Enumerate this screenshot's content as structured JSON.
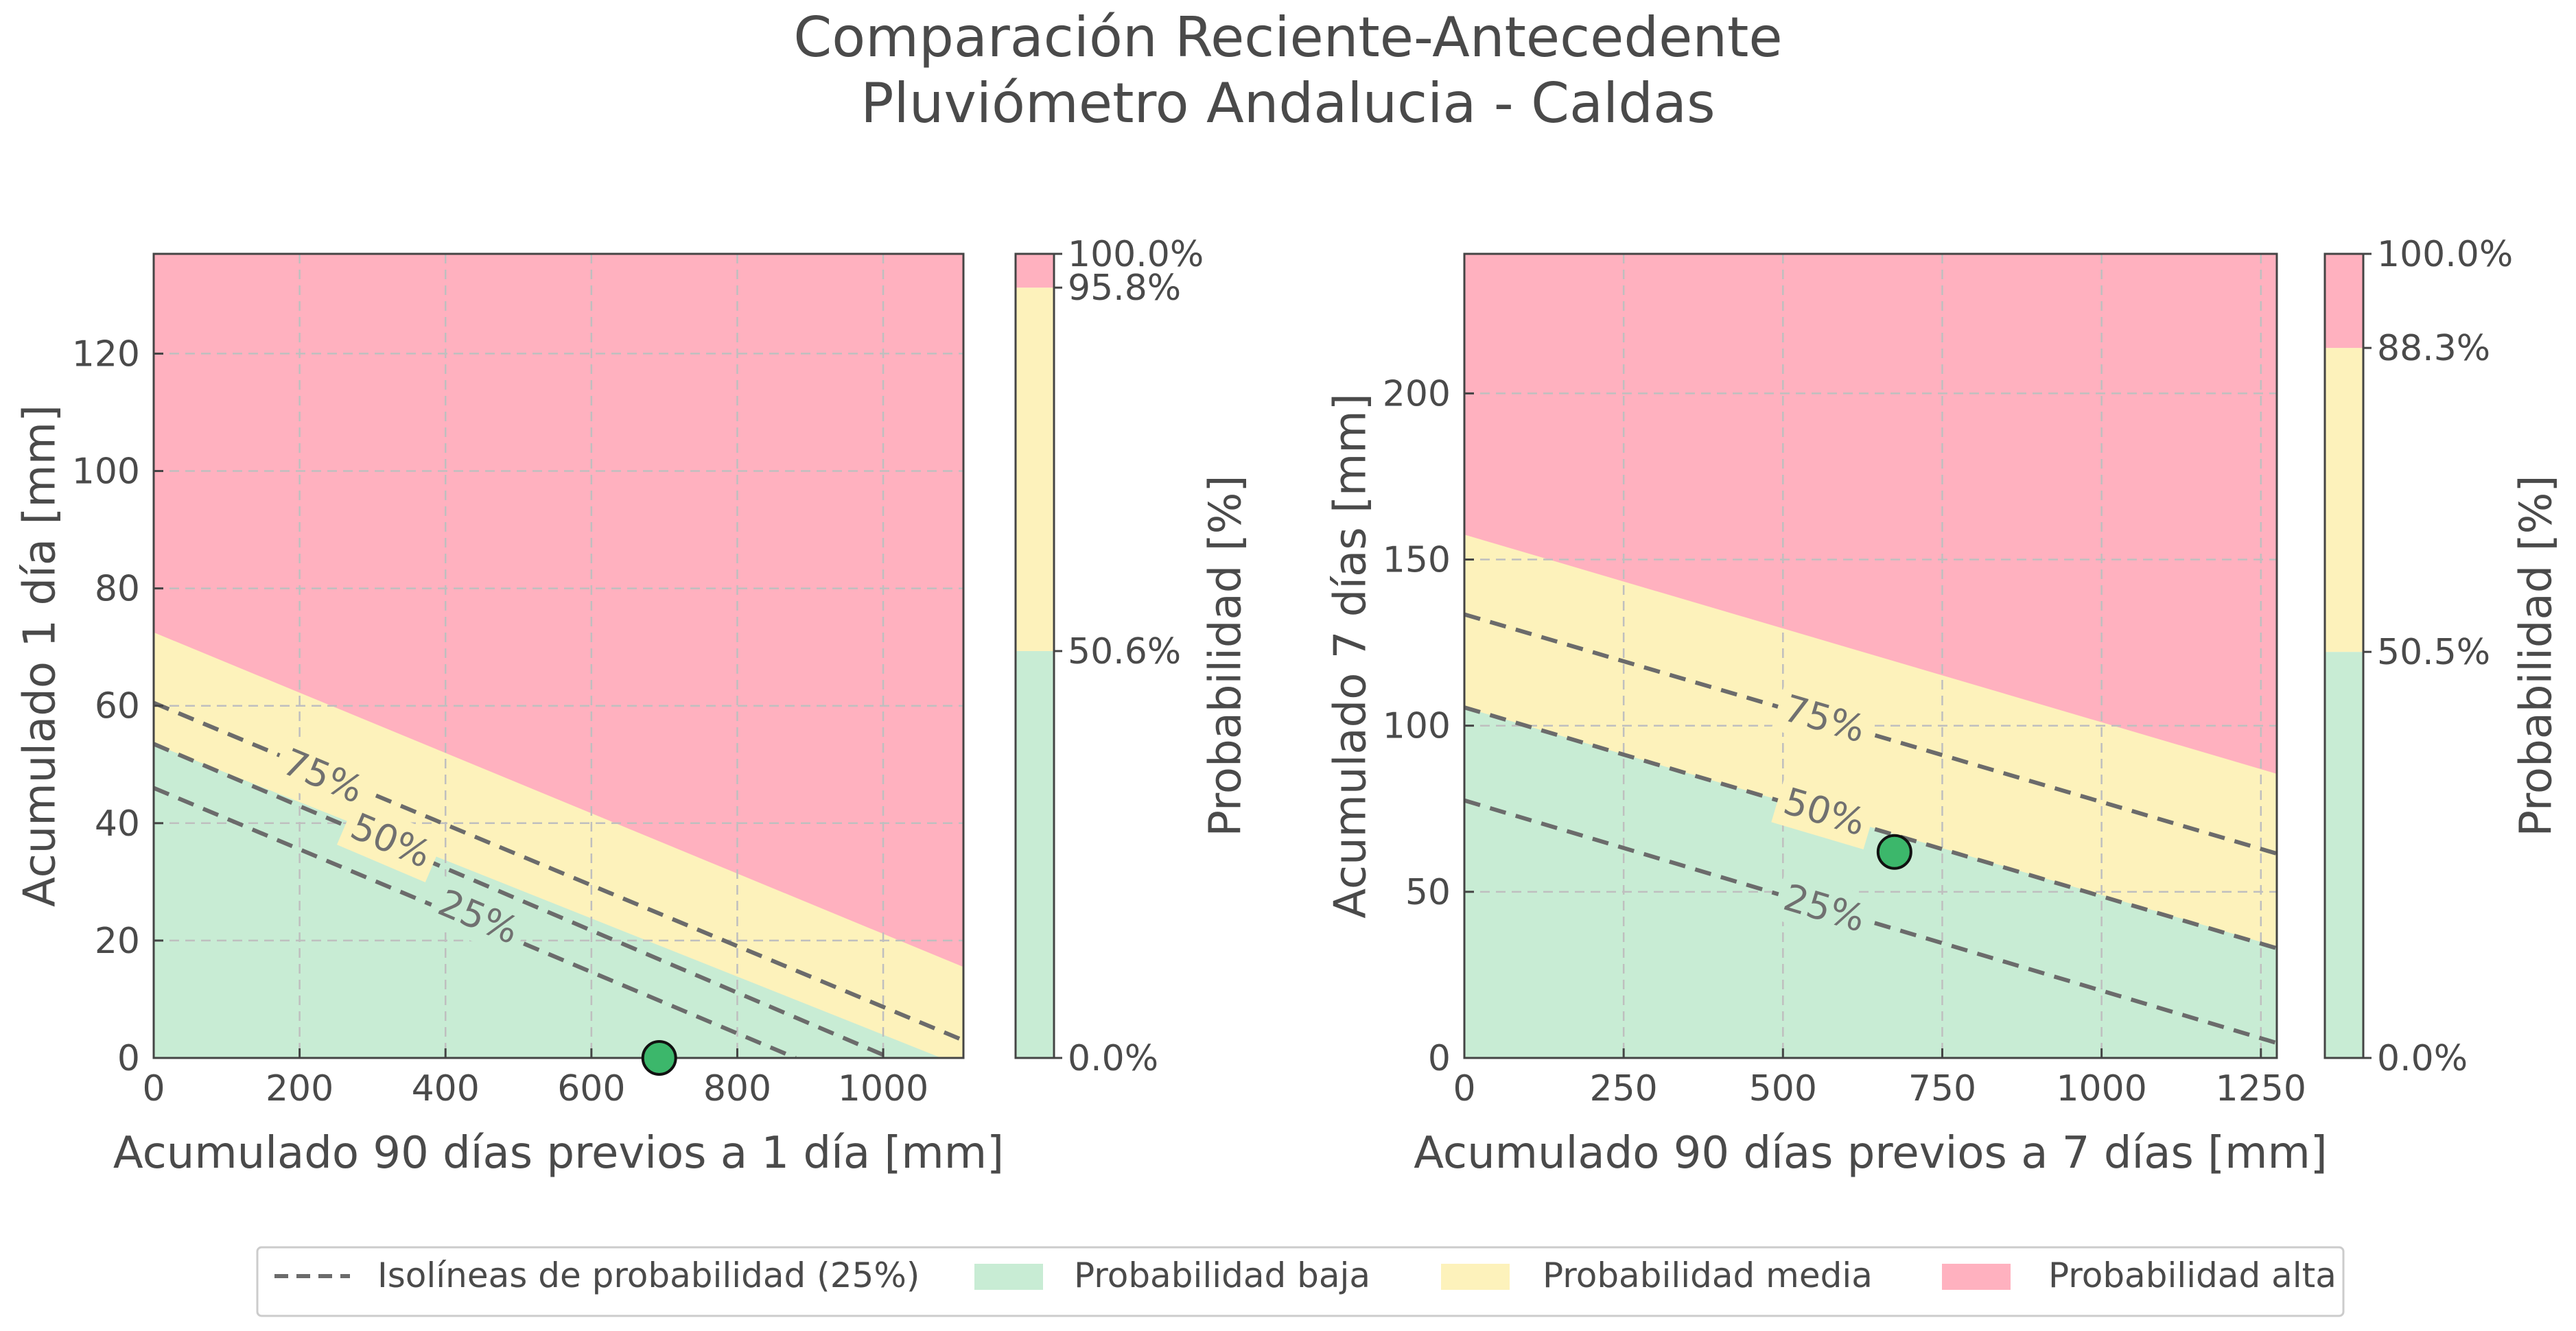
{
  "figure": {
    "title_line1": "Comparación Reciente-Antecedente",
    "title_line2": "Pluviómetro Andalucia - Caldas"
  },
  "colors": {
    "low": "#c8ecd4",
    "medium": "#fdf2bb",
    "high": "#ffb1bf",
    "isoline": "#6b6b6b",
    "point": "#3cb76b",
    "grid": "#bfbfbf",
    "text": "#4a4a4a"
  },
  "chart_data": [
    {
      "type": "contour",
      "xlabel": "Acumulado 90 días previos a 1 día [mm]",
      "ylabel": "Acumulado 1 día [mm]",
      "xlim": [
        0,
        1110
      ],
      "ylim": [
        0,
        137
      ],
      "xticks": [
        0,
        200,
        400,
        600,
        800,
        1000
      ],
      "yticks": [
        0,
        20,
        40,
        60,
        80,
        100,
        120
      ],
      "grid": true,
      "regions": {
        "low_medium_boundary": {
          "x": [
            0,
            1110
          ],
          "y": [
            53.5,
            -1.5
          ]
        },
        "medium_high_boundary": {
          "x": [
            0,
            1110
          ],
          "y": [
            72.5,
            15.5
          ]
        }
      },
      "isolines": [
        {
          "label": "25%",
          "x": [
            0,
            880
          ],
          "y": [
            46,
            0
          ],
          "label_at": [
            445,
            24
          ]
        },
        {
          "label": "50%",
          "x": [
            0,
            1010
          ],
          "y": [
            53.5,
            0
          ],
          "label_at": [
            325,
            37
          ]
        },
        {
          "label": "75%",
          "x": [
            0,
            1110
          ],
          "y": [
            60.5,
            3
          ],
          "label_at": [
            232,
            48
          ]
        }
      ],
      "current_point": {
        "x": 693,
        "y": 0
      },
      "colorbar": {
        "label": "Probabilidad [%]",
        "ticks": [
          "0.0%",
          "50.6%",
          "95.8%",
          "100.0%"
        ],
        "levels": [
          0,
          50.6,
          95.8,
          100
        ]
      }
    },
    {
      "type": "contour",
      "xlabel": "Acumulado 90 días previos a 7 días [mm]",
      "ylabel": "Acumulado 7 días [mm]",
      "xlim": [
        0,
        1275
      ],
      "ylim": [
        0,
        242
      ],
      "xticks": [
        0,
        250,
        500,
        750,
        1000,
        1250
      ],
      "yticks": [
        0,
        50,
        100,
        150,
        200
      ],
      "grid": true,
      "regions": {
        "low_medium_boundary": {
          "x": [
            0,
            1275
          ],
          "y": [
            105.5,
            33.5
          ]
        },
        "medium_high_boundary": {
          "x": [
            0,
            1275
          ],
          "y": [
            157.5,
            85.5
          ]
        }
      },
      "isolines": [
        {
          "label": "25%",
          "x": [
            0,
            1275
          ],
          "y": [
            77.5,
            4.5
          ],
          "label_at": [
            565,
            45
          ]
        },
        {
          "label": "50%",
          "x": [
            0,
            1275
          ],
          "y": [
            105.5,
            33
          ],
          "label_at": [
            565,
            74
          ]
        },
        {
          "label": "75%",
          "x": [
            0,
            1275
          ],
          "y": [
            133.5,
            61.5
          ],
          "label_at": [
            565,
            102
          ]
        }
      ],
      "current_point": {
        "x": 675,
        "y": 62
      },
      "colorbar": {
        "label": "Probabilidad [%]",
        "ticks": [
          "0.0%",
          "50.5%",
          "88.3%",
          "100.0%"
        ],
        "levels": [
          0,
          50.5,
          88.3,
          100
        ]
      }
    }
  ],
  "legend": {
    "items": [
      {
        "label": "Isolíneas de probabilidad (25%)",
        "kind": "line"
      },
      {
        "label": "Probabilidad baja",
        "kind": "low"
      },
      {
        "label": "Probabilidad media",
        "kind": "medium"
      },
      {
        "label": "Probabilidad alta",
        "kind": "high"
      }
    ]
  }
}
